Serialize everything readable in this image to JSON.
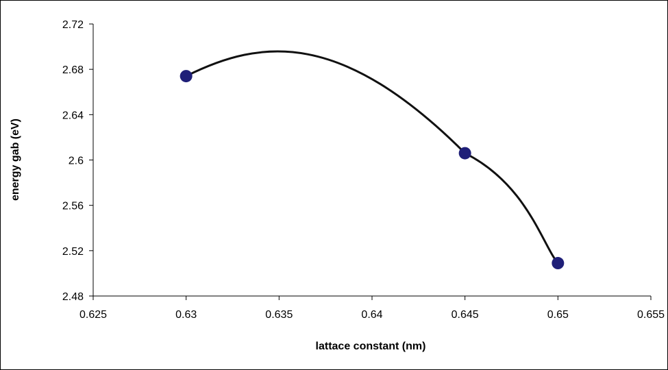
{
  "chart_data": {
    "type": "scatter",
    "title": "",
    "xlabel": "lattace constant (nm)",
    "ylabel": "energy gab (eV)",
    "xlim": [
      0.625,
      0.655
    ],
    "ylim": [
      2.48,
      2.72
    ],
    "xticks": [
      "0.625",
      "0.63",
      "0.635",
      "0.64",
      "0.645",
      "0.65",
      "0.655"
    ],
    "yticks": [
      "2.48",
      "2.52",
      "2.56",
      "2.6",
      "2.64",
      "2.68",
      "2.72"
    ],
    "grid": false,
    "legend": "none",
    "series": [
      {
        "points": [
          {
            "x": 0.63,
            "y": 2.674
          },
          {
            "x": 0.645,
            "y": 2.606
          },
          {
            "x": 0.65,
            "y": 2.509
          }
        ],
        "marker_color": "#1f1f78",
        "line": "smooth",
        "line_color": "#111111"
      }
    ]
  }
}
